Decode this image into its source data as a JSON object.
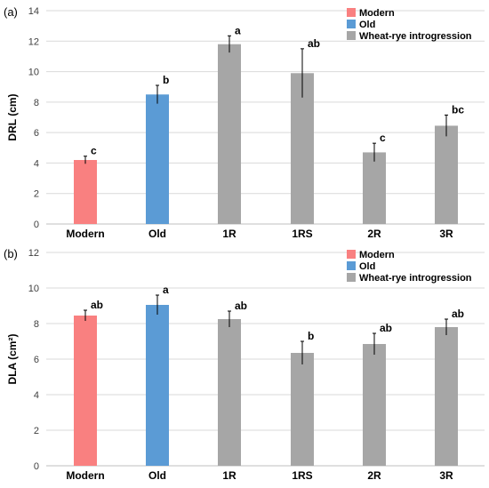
{
  "figure": {
    "panels": [
      {
        "panel_label": "(a)"
      },
      {
        "panel_label": "(b)"
      }
    ]
  },
  "colors": {
    "Modern": "#f98080",
    "Old": "#5b9bd5",
    "Wheat-rye introgression": "#a6a6a6",
    "gridline": "#d9d9d9",
    "axis": "#bfbfbf",
    "text": "#000000",
    "tick_text": "#404040"
  },
  "chart_data": [
    {
      "type": "bar",
      "panel": "(a)",
      "title": "",
      "xlabel": "",
      "ylabel": "DRL (cm)",
      "ylim": [
        0,
        14
      ],
      "yticks": [
        "0",
        "2",
        "4",
        "6",
        "8",
        "10",
        "12",
        "14"
      ],
      "grid": true,
      "legend_position": "top-right",
      "legend": [
        "Modern",
        "Old",
        "Wheat-rye introgression"
      ],
      "categories": [
        "Modern",
        "Old",
        "1R",
        "1RS",
        "2R",
        "3R"
      ],
      "groups": [
        "Modern",
        "Old",
        "Wheat-rye introgression",
        "Wheat-rye introgression",
        "Wheat-rye introgression",
        "Wheat-rye introgression"
      ],
      "values": [
        4.2,
        8.5,
        11.8,
        9.9,
        4.7,
        6.45
      ],
      "errors": [
        0.25,
        0.6,
        0.55,
        1.6,
        0.6,
        0.7
      ],
      "letters": [
        "c",
        "b",
        "a",
        "ab",
        "c",
        "bc"
      ]
    },
    {
      "type": "bar",
      "panel": "(b)",
      "title": "",
      "xlabel": "",
      "ylabel": "DLA (cm²)",
      "ylim": [
        0,
        12
      ],
      "yticks": [
        "0",
        "2",
        "4",
        "6",
        "8",
        "10",
        "12"
      ],
      "grid": true,
      "legend_position": "top-right",
      "legend": [
        "Modern",
        "Old",
        "Wheat-rye introgression"
      ],
      "categories": [
        "Modern",
        "Old",
        "1R",
        "1RS",
        "2R",
        "3R"
      ],
      "groups": [
        "Modern",
        "Old",
        "Wheat-rye introgression",
        "Wheat-rye introgression",
        "Wheat-rye introgression",
        "Wheat-rye introgression"
      ],
      "values": [
        8.45,
        9.05,
        8.25,
        6.35,
        6.85,
        7.8
      ],
      "errors": [
        0.3,
        0.55,
        0.45,
        0.65,
        0.6,
        0.45
      ],
      "letters": [
        "ab",
        "a",
        "ab",
        "b",
        "ab",
        "ab"
      ]
    }
  ]
}
